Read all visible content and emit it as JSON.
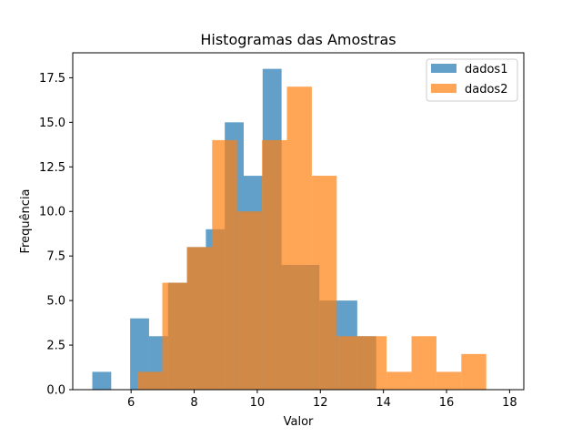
{
  "chart_data": {
    "type": "histogram",
    "title": "Histogramas das Amostras",
    "xlabel": "Valor",
    "ylabel": "Frequência",
    "xlim": [
      4.15,
      18.45
    ],
    "ylim": [
      0,
      18.9
    ],
    "xticks": [
      6,
      8,
      10,
      12,
      14,
      16,
      18
    ],
    "yticks": [
      0.0,
      2.5,
      5.0,
      7.5,
      10.0,
      12.5,
      15.0,
      17.5
    ],
    "ytick_labels": [
      "0.0",
      "2.5",
      "5.0",
      "7.5",
      "10.0",
      "12.5",
      "15.0",
      "17.5"
    ],
    "grid": false,
    "legend_position": "top-right",
    "alpha": 0.7,
    "series": [
      {
        "name": "dados1",
        "color": "#1f77b4",
        "bin_edges": [
          4.77,
          5.37,
          5.97,
          6.57,
          7.17,
          7.77,
          8.37,
          8.97,
          9.57,
          10.17,
          10.77,
          11.37,
          11.97,
          12.57,
          13.17,
          13.77
        ],
        "counts": [
          1,
          0,
          4,
          3,
          6,
          8,
          9,
          15,
          12,
          18,
          7,
          7,
          5,
          5,
          3
        ]
      },
      {
        "name": "dados2",
        "color": "#ff7f0e",
        "bin_edges": [
          6.2,
          6.99,
          7.78,
          8.57,
          9.36,
          10.15,
          10.94,
          11.73,
          12.52,
          13.31,
          14.1,
          14.89,
          15.68,
          16.47,
          17.26,
          18.05
        ],
        "counts": [
          1,
          6,
          8,
          14,
          10,
          14,
          17,
          12,
          3,
          3,
          1,
          3,
          1,
          2,
          0
        ]
      }
    ]
  }
}
